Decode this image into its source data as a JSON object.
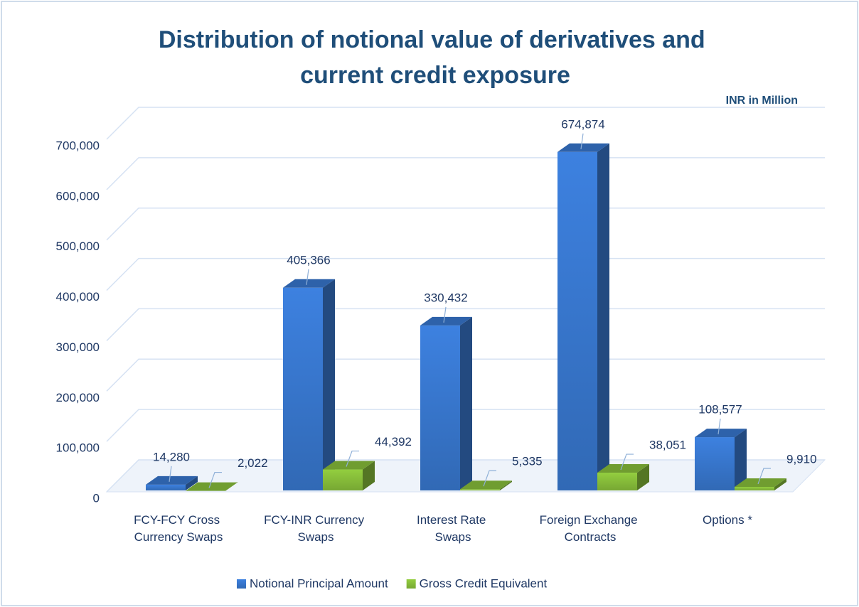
{
  "chart_data": {
    "type": "bar3d",
    "title": "Distribution of notional value of derivatives and current credit exposure",
    "subtitle": "INR in Million",
    "categories": [
      "FCY-FCY Cross Currency Swaps",
      "FCY-INR Currency Swaps",
      "Interest Rate Swaps",
      "Foreign Exchange Contracts",
      "Options *"
    ],
    "series": [
      {
        "name": "Notional Principal Amount",
        "color": "#3a7bd5",
        "values": [
          14280,
          405366,
          330432,
          674874,
          108577
        ],
        "value_labels": [
          "14,280",
          "405,366",
          "330,432",
          "674,874",
          "108,577"
        ]
      },
      {
        "name": "Gross Credit Equivalent",
        "color": "#8cc43c",
        "values": [
          2022,
          44392,
          5335,
          38051,
          9910
        ],
        "value_labels": [
          "2,022",
          "44,392",
          "5,335",
          "38,051",
          "9,910"
        ]
      }
    ],
    "ylim": [
      0,
      700000
    ],
    "yticks": [
      0,
      {
        "value": 100000,
        "label": "100,000"
      },
      {
        "value": 200000,
        "label": "200,000"
      },
      {
        "value": 300000,
        "label": "300,000"
      },
      {
        "value": 400000,
        "label": "400,000"
      },
      {
        "value": 500000,
        "label": "500,000"
      },
      {
        "value": 600000,
        "label": "600,000"
      },
      {
        "value": 700000,
        "label": "700,000"
      }
    ],
    "grid": true,
    "legend": "bottom"
  }
}
